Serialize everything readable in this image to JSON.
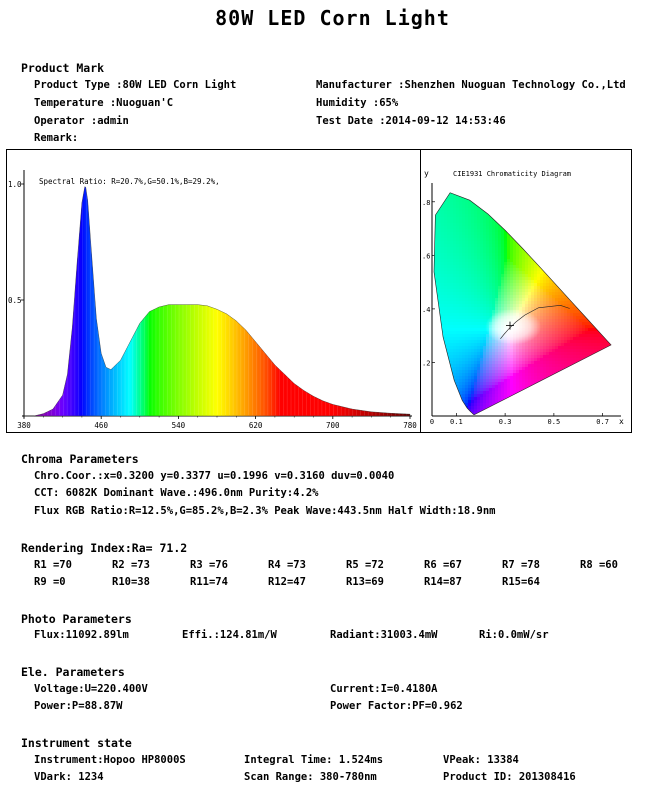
{
  "title": "80W LED  Corn  Light",
  "product_mark": {
    "heading": "Product Mark",
    "product_type": "Product Type :80W LED Corn  Light",
    "manufacturer": "Manufacturer :Shenzhen Nuoguan Technology Co.,Ltd",
    "temperature": "Temperature :Nuoguan'C",
    "humidity": "Humidity :65%",
    "operator": "Operator :admin",
    "test_date": "Test Date :2014-09-12 14:53:46",
    "remark": "Remark:"
  },
  "chart_data": [
    {
      "type": "area",
      "annotation": "Spectral Ratio:  R=20.7%,G=50.1%,B=29.2%,",
      "xlabel": "",
      "ylabel": "",
      "xlim": [
        380,
        780
      ],
      "ylim": [
        0,
        1.0
      ],
      "x_ticks": [
        "380",
        "460",
        "540",
        "620",
        "700",
        "780"
      ],
      "y_ticks": [
        "1.0",
        "0.5"
      ],
      "x": [
        380,
        390,
        400,
        410,
        420,
        425,
        430,
        435,
        440,
        443.5,
        446,
        450,
        455,
        460,
        465,
        470,
        480,
        490,
        500,
        510,
        520,
        530,
        540,
        550,
        560,
        570,
        580,
        590,
        600,
        610,
        620,
        630,
        640,
        650,
        660,
        670,
        680,
        690,
        700,
        720,
        740,
        760,
        780
      ],
      "values": [
        0,
        0,
        0.01,
        0.03,
        0.09,
        0.18,
        0.38,
        0.66,
        0.92,
        1.0,
        0.93,
        0.7,
        0.42,
        0.27,
        0.21,
        0.2,
        0.24,
        0.32,
        0.4,
        0.45,
        0.47,
        0.48,
        0.48,
        0.48,
        0.48,
        0.475,
        0.46,
        0.44,
        0.41,
        0.37,
        0.32,
        0.27,
        0.22,
        0.18,
        0.14,
        0.11,
        0.085,
        0.065,
        0.05,
        0.03,
        0.018,
        0.012,
        0.008
      ]
    },
    {
      "type": "scatter",
      "title": "CIE1931 Chromaticity Diagram",
      "xlabel": "x",
      "ylabel": "y",
      "xlim": [
        0,
        0.8
      ],
      "ylim": [
        0,
        0.9
      ],
      "x_ticks": [
        "0",
        "0.1",
        "0.3",
        "0.5",
        "0.7"
      ],
      "y_ticks": [
        ".8",
        ".6",
        ".4",
        ".2"
      ],
      "points": [
        {
          "x": 0.32,
          "y": 0.3377
        }
      ]
    }
  ],
  "chroma": {
    "heading": "Chroma Parameters",
    "line1": "Chro.Coor.:x=0.3200  y=0.3377    u=0.1996  v=0.3160    duv=0.0040",
    "line2": "CCT: 6082K   Dominant Wave.:496.0nm   Purity:4.2%",
    "line3": "Flux RGB Ratio:R=12.5%,G=85.2%,B=2.3%   Peak Wave:443.5nm   Half Width:18.9nm"
  },
  "rendering": {
    "heading": "Rendering Index:Ra= 71.2",
    "row1": [
      "R1 =70",
      "R2 =73",
      "R3 =76",
      "R4 =73",
      "R5 =72",
      "R6 =67",
      "R7 =78",
      "R8 =60"
    ],
    "row2": [
      "R9 =0",
      "R10=38",
      "R11=74",
      "R12=47",
      "R13=69",
      "R14=87",
      "R15=64"
    ]
  },
  "photo": {
    "heading": "Photo Parameters",
    "flux": "Flux:11092.89lm",
    "effi": "Effi.:124.81m/W",
    "radiant": "Radiant:31003.4mW",
    "ri": "Ri:0.0mW/sr"
  },
  "ele": {
    "heading": "Ele. Parameters",
    "voltage": "Voltage:U=220.400V",
    "current": "Current:I=0.4180A",
    "power": "Power:P=88.87W",
    "pf": "Power Factor:PF=0.962"
  },
  "instrument": {
    "heading": "Instrument state",
    "instrument": "Instrument:Hopoo HP8000S",
    "integral": "Integral Time: 1.524ms",
    "vpeak": "VPeak: 13384",
    "vdark": "VDark: 1234",
    "scan": "Scan Range: 380-780nm",
    "product_id": "Product ID: 201308416"
  }
}
